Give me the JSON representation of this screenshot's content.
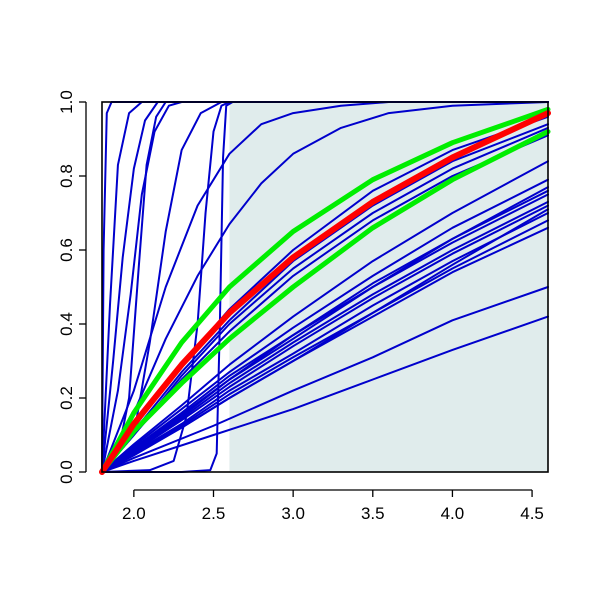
{
  "chart_data": {
    "type": "line",
    "title": "",
    "xlabel": "",
    "ylabel": "",
    "xlim": [
      1.8,
      4.6
    ],
    "ylim": [
      0,
      1
    ],
    "x_ticks": [
      2.0,
      2.5,
      3.0,
      3.5,
      4.0,
      4.5
    ],
    "x_tick_labels": [
      "2.0",
      "2.5",
      "3.0",
      "3.5",
      "4.0",
      "4.5"
    ],
    "y_ticks": [
      0.0,
      0.2,
      0.4,
      0.6,
      0.8,
      1.0
    ],
    "y_tick_labels": [
      "0.0",
      "0.2",
      "0.4",
      "0.6",
      "0.8",
      "1.0"
    ],
    "grid": false,
    "legend": "none",
    "shaded_region": {
      "x_from": 2.6,
      "x_to": 4.6,
      "y_from": 0,
      "y_to": 1,
      "color": "#e0ecec"
    },
    "colors": {
      "individual": "#0000cc",
      "central": "#ff0000",
      "band": "#00ee00",
      "axis": "#000000",
      "shade": "#e0ecec"
    },
    "series": [
      {
        "role": "individual",
        "values": [
          [
            1.8,
            0
          ],
          [
            1.81,
            0.6
          ],
          [
            1.83,
            0.97
          ],
          [
            1.86,
            1.0
          ],
          [
            4.6,
            1.0
          ]
        ]
      },
      {
        "role": "individual",
        "values": [
          [
            1.8,
            0
          ],
          [
            1.85,
            0.45
          ],
          [
            1.9,
            0.83
          ],
          [
            1.97,
            0.97
          ],
          [
            2.05,
            1.0
          ],
          [
            4.6,
            1.0
          ]
        ]
      },
      {
        "role": "individual",
        "values": [
          [
            1.8,
            0
          ],
          [
            1.87,
            0.3
          ],
          [
            1.93,
            0.58
          ],
          [
            2.0,
            0.82
          ],
          [
            2.07,
            0.95
          ],
          [
            2.15,
            1.0
          ],
          [
            4.6,
            1.0
          ]
        ]
      },
      {
        "role": "individual",
        "values": [
          [
            1.8,
            0
          ],
          [
            1.9,
            0.22
          ],
          [
            1.98,
            0.48
          ],
          [
            2.05,
            0.75
          ],
          [
            2.13,
            0.92
          ],
          [
            2.22,
            0.99
          ],
          [
            2.3,
            1.0
          ],
          [
            4.6,
            1.0
          ]
        ]
      },
      {
        "role": "individual",
        "values": [
          [
            1.8,
            0
          ],
          [
            1.9,
            0.05
          ],
          [
            1.97,
            0.2
          ],
          [
            2.03,
            0.55
          ],
          [
            2.08,
            0.83
          ],
          [
            2.14,
            0.96
          ],
          [
            2.2,
            1.0
          ],
          [
            4.6,
            1.0
          ]
        ]
      },
      {
        "role": "individual",
        "values": [
          [
            1.8,
            0
          ],
          [
            2.0,
            0.1
          ],
          [
            2.1,
            0.35
          ],
          [
            2.2,
            0.65
          ],
          [
            2.3,
            0.87
          ],
          [
            2.42,
            0.97
          ],
          [
            2.55,
            1.0
          ],
          [
            4.6,
            1.0
          ]
        ]
      },
      {
        "role": "individual",
        "values": [
          [
            1.8,
            0
          ],
          [
            2.1,
            0.005
          ],
          [
            2.25,
            0.03
          ],
          [
            2.33,
            0.15
          ],
          [
            2.4,
            0.4
          ],
          [
            2.45,
            0.7
          ],
          [
            2.5,
            0.92
          ],
          [
            2.55,
            0.99
          ],
          [
            2.6,
            1.0
          ],
          [
            4.6,
            1.0
          ]
        ]
      },
      {
        "role": "individual",
        "values": [
          [
            1.8,
            0
          ],
          [
            2.3,
            0.0
          ],
          [
            2.48,
            0.005
          ],
          [
            2.52,
            0.05
          ],
          [
            2.54,
            0.4
          ],
          [
            2.56,
            0.85
          ],
          [
            2.58,
            0.99
          ],
          [
            2.62,
            1.0
          ],
          [
            4.6,
            1.0
          ]
        ]
      },
      {
        "role": "individual",
        "values": [
          [
            1.8,
            0
          ],
          [
            2.0,
            0.16
          ],
          [
            2.2,
            0.36
          ],
          [
            2.4,
            0.53
          ],
          [
            2.6,
            0.67
          ],
          [
            2.8,
            0.78
          ],
          [
            3.0,
            0.86
          ],
          [
            3.3,
            0.93
          ],
          [
            3.6,
            0.97
          ],
          [
            4.0,
            0.99
          ],
          [
            4.6,
            1.0
          ]
        ]
      },
      {
        "role": "individual",
        "values": [
          [
            1.8,
            0
          ],
          [
            2.0,
            0.22
          ],
          [
            2.2,
            0.5
          ],
          [
            2.4,
            0.72
          ],
          [
            2.6,
            0.86
          ],
          [
            2.8,
            0.94
          ],
          [
            3.0,
            0.97
          ],
          [
            3.3,
            0.99
          ],
          [
            3.6,
            1.0
          ],
          [
            4.6,
            1.0
          ]
        ]
      },
      {
        "role": "individual",
        "values": [
          [
            1.8,
            0
          ],
          [
            2.0,
            0.1
          ],
          [
            2.3,
            0.25
          ],
          [
            2.6,
            0.38
          ],
          [
            3.0,
            0.53
          ],
          [
            3.5,
            0.68
          ],
          [
            4.0,
            0.8
          ],
          [
            4.6,
            0.91
          ]
        ]
      },
      {
        "role": "individual",
        "values": [
          [
            1.8,
            0
          ],
          [
            2.0,
            0.11
          ],
          [
            2.3,
            0.27
          ],
          [
            2.6,
            0.41
          ],
          [
            3.0,
            0.57
          ],
          [
            3.5,
            0.72
          ],
          [
            4.0,
            0.84
          ],
          [
            4.6,
            0.94
          ]
        ]
      },
      {
        "role": "individual",
        "values": [
          [
            1.8,
            0
          ],
          [
            2.0,
            0.12
          ],
          [
            2.3,
            0.29
          ],
          [
            2.6,
            0.44
          ],
          [
            3.0,
            0.6
          ],
          [
            3.5,
            0.76
          ],
          [
            4.0,
            0.87
          ],
          [
            4.6,
            0.96
          ]
        ]
      },
      {
        "role": "individual",
        "values": [
          [
            1.8,
            0
          ],
          [
            2.0,
            0.1
          ],
          [
            2.3,
            0.26
          ],
          [
            2.6,
            0.4
          ],
          [
            3.0,
            0.55
          ],
          [
            3.5,
            0.7
          ],
          [
            4.0,
            0.82
          ],
          [
            4.6,
            0.93
          ]
        ]
      },
      {
        "role": "individual",
        "values": [
          [
            1.8,
            0
          ],
          [
            2.0,
            0.07
          ],
          [
            2.3,
            0.17
          ],
          [
            2.6,
            0.27
          ],
          [
            3.0,
            0.39
          ],
          [
            3.5,
            0.53
          ],
          [
            4.0,
            0.66
          ],
          [
            4.6,
            0.79
          ]
        ]
      },
      {
        "role": "individual",
        "values": [
          [
            1.8,
            0
          ],
          [
            2.0,
            0.075
          ],
          [
            2.3,
            0.18
          ],
          [
            2.6,
            0.29
          ],
          [
            3.0,
            0.42
          ],
          [
            3.5,
            0.57
          ],
          [
            4.0,
            0.7
          ],
          [
            4.6,
            0.84
          ]
        ]
      },
      {
        "role": "individual",
        "values": [
          [
            1.8,
            0
          ],
          [
            2.0,
            0.065
          ],
          [
            2.3,
            0.16
          ],
          [
            2.6,
            0.26
          ],
          [
            3.0,
            0.37
          ],
          [
            3.5,
            0.51
          ],
          [
            4.0,
            0.63
          ],
          [
            4.6,
            0.77
          ]
        ]
      },
      {
        "role": "individual",
        "values": [
          [
            1.8,
            0
          ],
          [
            2.0,
            0.06
          ],
          [
            2.3,
            0.15
          ],
          [
            2.6,
            0.25
          ],
          [
            3.0,
            0.36
          ],
          [
            3.5,
            0.5
          ],
          [
            4.0,
            0.62
          ],
          [
            4.6,
            0.75
          ]
        ]
      },
      {
        "role": "individual",
        "values": [
          [
            1.8,
            0
          ],
          [
            2.0,
            0.058
          ],
          [
            2.3,
            0.145
          ],
          [
            2.6,
            0.24
          ],
          [
            3.0,
            0.35
          ],
          [
            3.5,
            0.48
          ],
          [
            4.0,
            0.6
          ],
          [
            4.6,
            0.73
          ]
        ]
      },
      {
        "role": "individual",
        "values": [
          [
            1.8,
            0
          ],
          [
            2.0,
            0.055
          ],
          [
            2.3,
            0.14
          ],
          [
            2.6,
            0.23
          ],
          [
            3.0,
            0.34
          ],
          [
            3.5,
            0.47
          ],
          [
            4.0,
            0.59
          ],
          [
            4.6,
            0.72
          ]
        ]
      },
      {
        "role": "individual",
        "values": [
          [
            1.8,
            0
          ],
          [
            2.0,
            0.052
          ],
          [
            2.3,
            0.13
          ],
          [
            2.6,
            0.22
          ],
          [
            3.0,
            0.32
          ],
          [
            3.5,
            0.45
          ],
          [
            4.0,
            0.57
          ],
          [
            4.6,
            0.7
          ]
        ]
      },
      {
        "role": "individual",
        "values": [
          [
            1.8,
            0
          ],
          [
            2.0,
            0.05
          ],
          [
            2.3,
            0.125
          ],
          [
            2.6,
            0.21
          ],
          [
            3.0,
            0.31
          ],
          [
            3.5,
            0.43
          ],
          [
            4.0,
            0.55
          ],
          [
            4.6,
            0.68
          ]
        ]
      },
      {
        "role": "individual",
        "values": [
          [
            1.8,
            0
          ],
          [
            2.0,
            0.048
          ],
          [
            2.3,
            0.12
          ],
          [
            2.6,
            0.2
          ],
          [
            3.0,
            0.3
          ],
          [
            3.5,
            0.42
          ],
          [
            4.0,
            0.54
          ],
          [
            4.6,
            0.66
          ]
        ]
      },
      {
        "role": "individual",
        "values": [
          [
            1.8,
            0
          ],
          [
            2.0,
            0.062
          ],
          [
            2.3,
            0.155
          ],
          [
            2.6,
            0.25
          ],
          [
            3.0,
            0.37
          ],
          [
            3.5,
            0.5
          ],
          [
            4.0,
            0.63
          ],
          [
            4.6,
            0.76
          ]
        ]
      },
      {
        "role": "individual",
        "values": [
          [
            1.8,
            0
          ],
          [
            2.0,
            0.045
          ],
          [
            2.3,
            0.12
          ],
          [
            2.6,
            0.2
          ],
          [
            3.0,
            0.3
          ],
          [
            3.5,
            0.43
          ],
          [
            4.0,
            0.56
          ],
          [
            4.6,
            0.71
          ]
        ]
      },
      {
        "role": "individual",
        "values": [
          [
            1.8,
            0
          ],
          [
            2.0,
            0.03
          ],
          [
            2.5,
            0.1
          ],
          [
            3.0,
            0.17
          ],
          [
            3.5,
            0.25
          ],
          [
            4.0,
            0.33
          ],
          [
            4.6,
            0.42
          ]
        ]
      },
      {
        "role": "individual",
        "values": [
          [
            1.8,
            0
          ],
          [
            2.0,
            0.038
          ],
          [
            2.5,
            0.125
          ],
          [
            3.0,
            0.22
          ],
          [
            3.5,
            0.31
          ],
          [
            4.0,
            0.41
          ],
          [
            4.6,
            0.5
          ]
        ]
      },
      {
        "role": "band",
        "values": [
          [
            1.8,
            0
          ],
          [
            2.0,
            0.16
          ],
          [
            2.3,
            0.35
          ],
          [
            2.6,
            0.5
          ],
          [
            3.0,
            0.65
          ],
          [
            3.5,
            0.79
          ],
          [
            4.0,
            0.89
          ],
          [
            4.6,
            0.98
          ]
        ]
      },
      {
        "role": "band",
        "values": [
          [
            1.8,
            0
          ],
          [
            2.0,
            0.11
          ],
          [
            2.3,
            0.24
          ],
          [
            2.6,
            0.36
          ],
          [
            3.0,
            0.5
          ],
          [
            3.5,
            0.66
          ],
          [
            4.0,
            0.79
          ],
          [
            4.6,
            0.92
          ]
        ]
      },
      {
        "role": "central",
        "values": [
          [
            1.8,
            0
          ],
          [
            2.0,
            0.13
          ],
          [
            2.3,
            0.29
          ],
          [
            2.6,
            0.43
          ],
          [
            3.0,
            0.58
          ],
          [
            3.5,
            0.73
          ],
          [
            4.0,
            0.85
          ],
          [
            4.6,
            0.97
          ]
        ]
      }
    ]
  }
}
